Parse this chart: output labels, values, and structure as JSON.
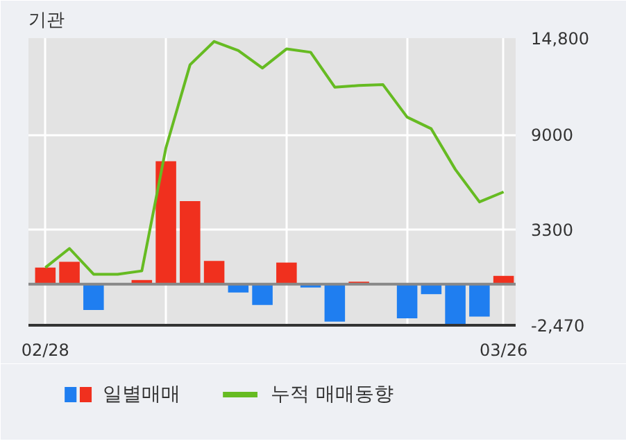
{
  "chart_data": {
    "type": "bar",
    "title": "기관",
    "categories": [
      "02/28",
      null,
      null,
      null,
      null,
      null,
      null,
      null,
      null,
      null,
      null,
      null,
      null,
      null,
      null,
      null,
      null,
      null,
      null,
      "03/26"
    ],
    "series": [
      {
        "name": "일별매매",
        "colors": [
          "#f0301e",
          "#f0301e",
          "#1f7ef0",
          "#f0301e",
          "#f0301e",
          "#f0301e",
          "#f0301e",
          "#f0301e",
          "#1f7ef0",
          "#1f7ef0",
          "#f0301e",
          "#1f7ef0",
          "#1f7ef0",
          "#f0301e",
          "#f0301e",
          "#1f7ef0",
          "#1f7ef0",
          "#1f7ef0",
          "#1f7ef0",
          "#f0301e"
        ],
        "values": [
          1000,
          1350,
          -1550,
          0,
          250,
          7400,
          5000,
          1400,
          -500,
          -1250,
          1300,
          -200,
          -2250,
          150,
          0,
          -2050,
          -600,
          -2450,
          -1950,
          500
        ]
      },
      {
        "name": "누적 매매동향",
        "type": "line",
        "color": "#66bb22",
        "values": [
          1000,
          2150,
          600,
          600,
          800,
          8200,
          13200,
          14600,
          14050,
          13000,
          14150,
          13950,
          11850,
          11950,
          12000,
          10050,
          9350,
          6900,
          4950,
          5550
        ]
      }
    ],
    "ylim": [
      -2470,
      14800
    ],
    "yticks": [
      {
        "value": 14800,
        "label": "14,800"
      },
      9000,
      3300,
      {
        "value": -2470,
        "label": "-2,470"
      }
    ],
    "ref_lines": [
      {
        "axis": "y",
        "value": 0,
        "color": "#888888"
      }
    ],
    "grid": true,
    "legend": "bottom",
    "marker": "none",
    "line_style": "solid"
  }
}
